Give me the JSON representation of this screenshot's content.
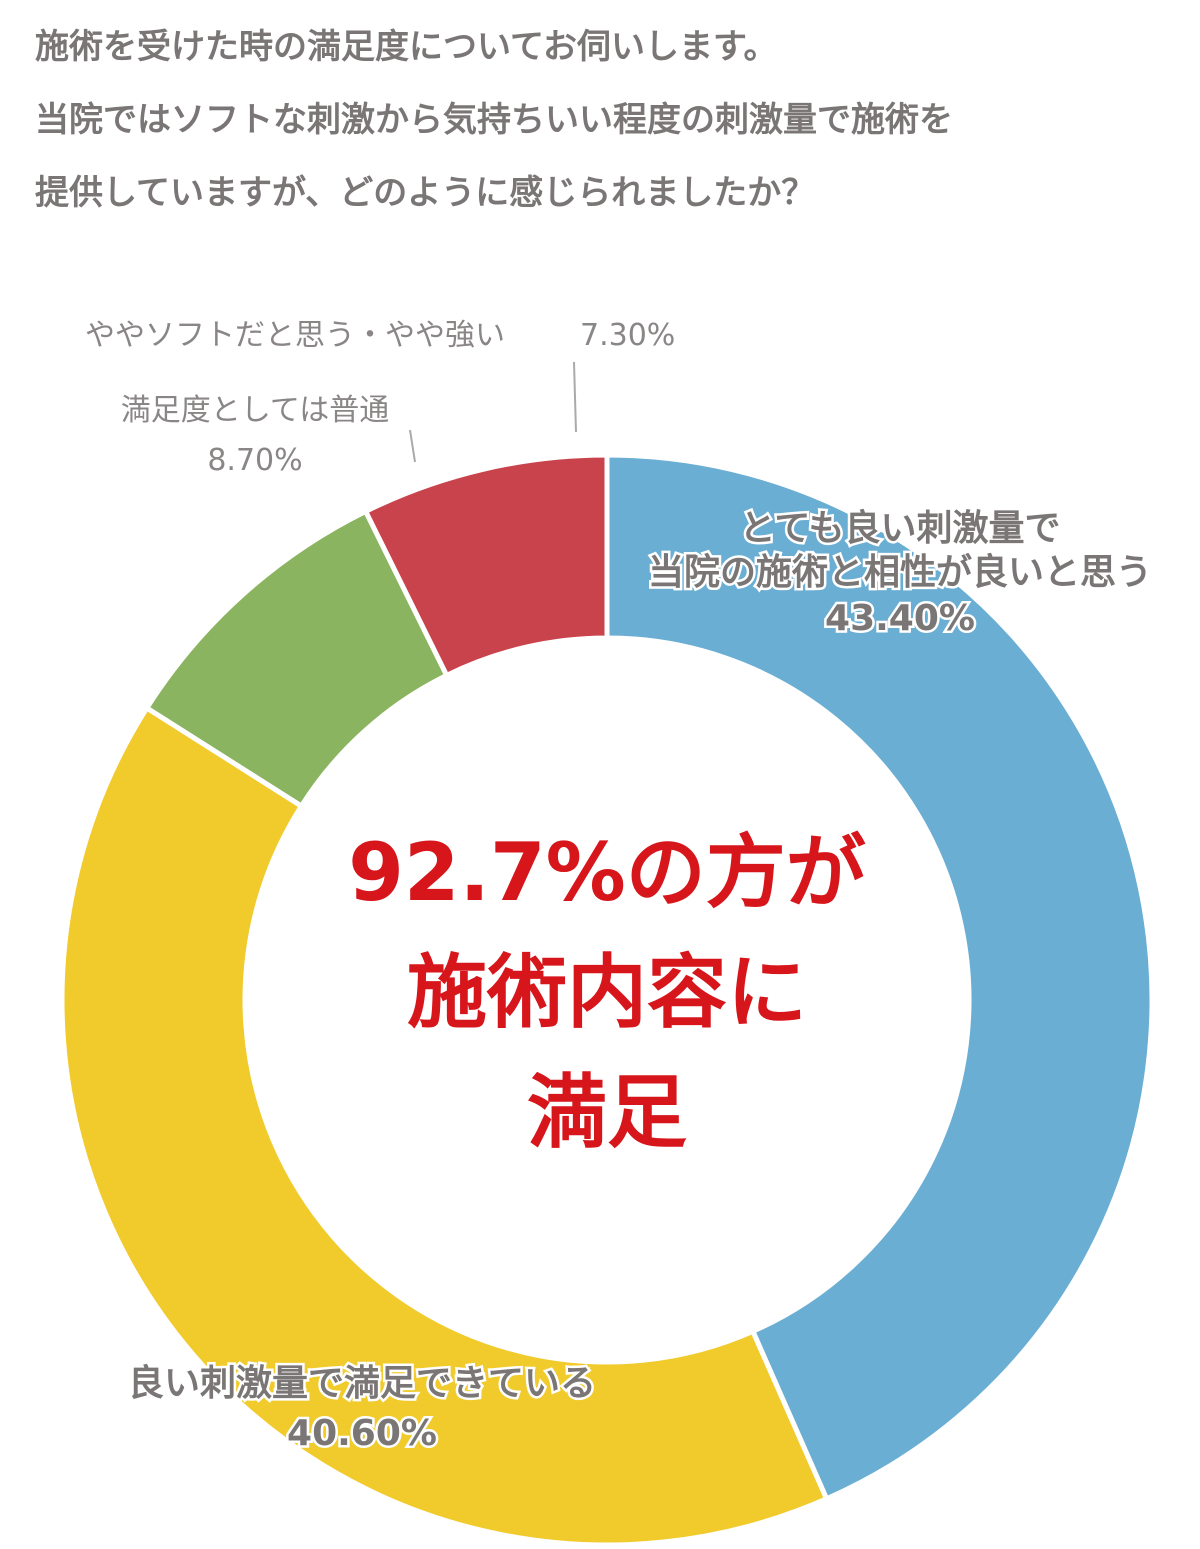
{
  "chart_data": {
    "type": "donut",
    "title": "施術を受けた時の満足度についてお伺いします。\n当院ではソフトな刺激から気持ちいい程度の刺激量で施術を\n提供していますが、どのように感じられましたか？",
    "categories": [
      "とても良い刺激量で\n当院の施術と相性が良いと思う",
      "良い刺激量で満足できている",
      "満足度としては普通",
      "ややソフトだと思う・やや強い"
    ],
    "values": [
      43.4,
      40.6,
      8.7,
      7.3
    ],
    "value_labels": [
      "43.40%",
      "40.60%",
      "8.70%",
      "7.30%"
    ],
    "colors": [
      "#6aaed4",
      "#f1ca2b",
      "#8ab45f",
      "#c8434b"
    ],
    "annotation": "92.7%の方が\n施術内容に\n満足"
  }
}
